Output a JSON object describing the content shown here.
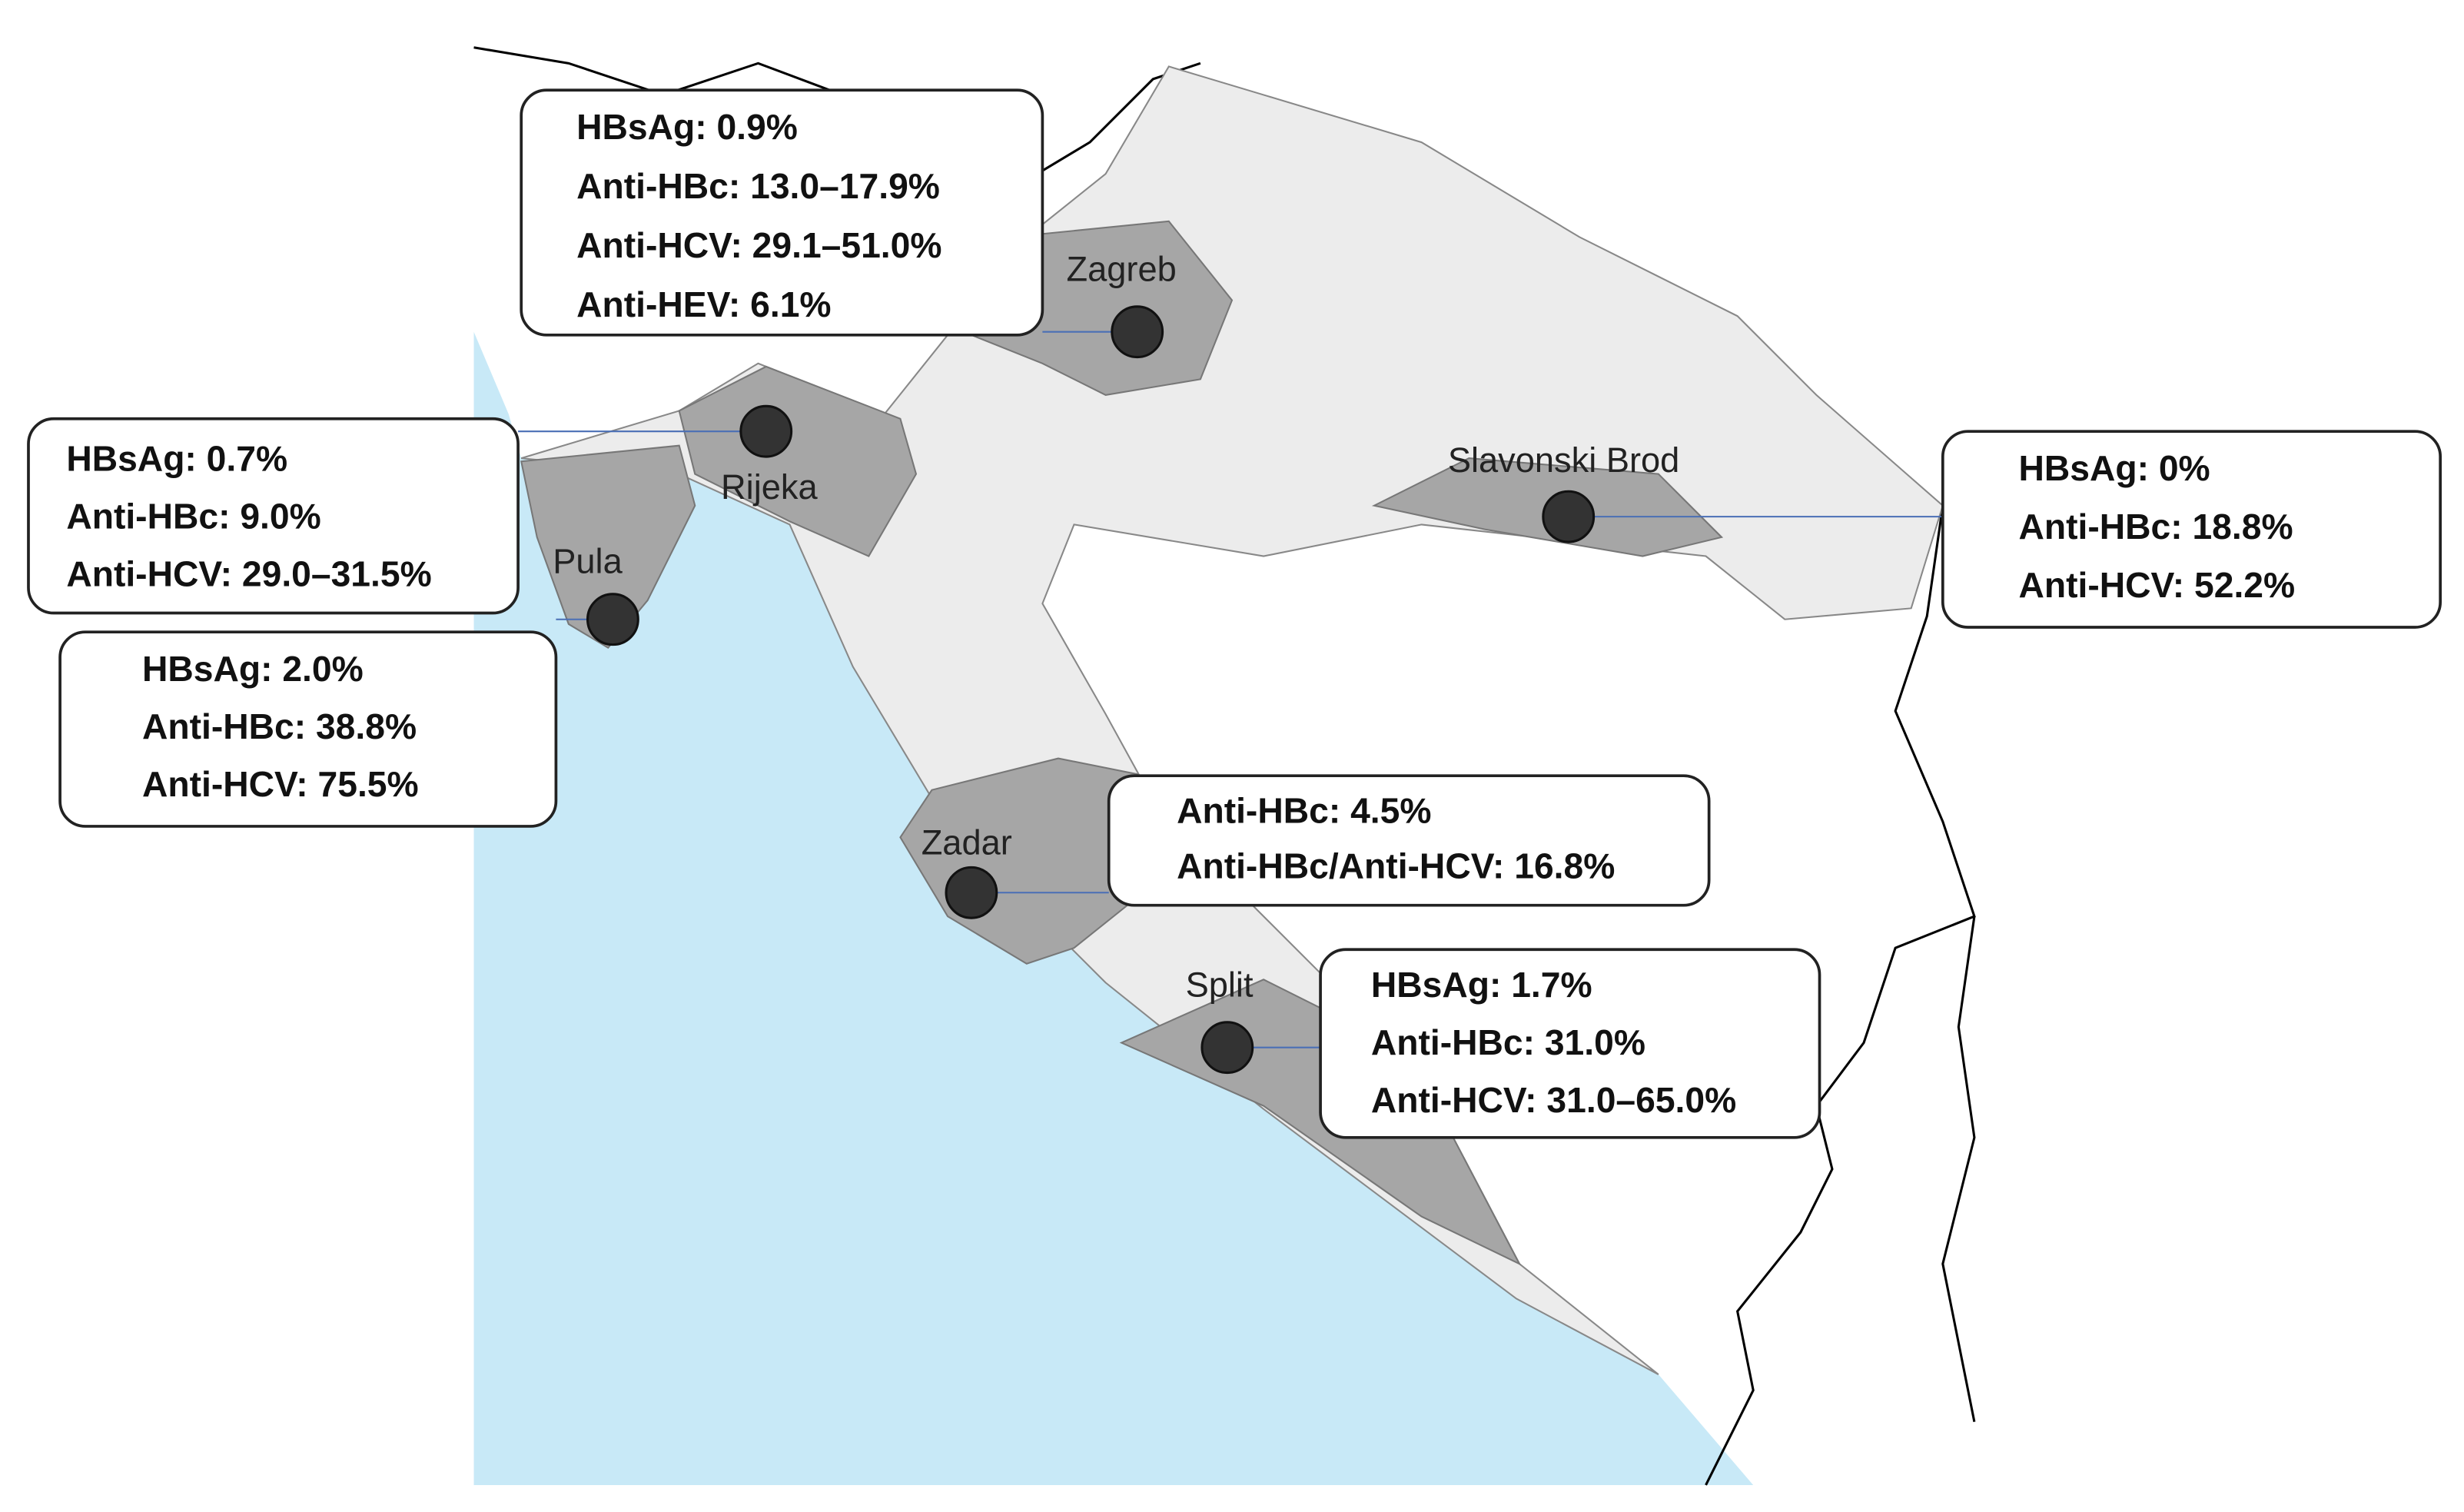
{
  "regions": [
    {
      "city": "Zagreb",
      "lines": [
        "HBsAg:  0.9%",
        "Anti-HBc:  13.0–17.9%",
        "Anti-HCV:  29.1–51.0%",
        "Anti-HEV:  6.1%"
      ]
    },
    {
      "city": "Rijeka",
      "lines": [
        "HBsAg:  0.7%",
        "Anti-HBc:  9.0%",
        "Anti-HCV:  29.0–31.5%"
      ]
    },
    {
      "city": "Pula",
      "lines": [
        "HBsAg:  2.0%",
        "Anti-HBc:  38.8%",
        "Anti-HCV:  75.5%"
      ]
    },
    {
      "city": "Slavonski Brod",
      "lines": [
        "HBsAg:  0%",
        "Anti-HBc:  18.8%",
        "Anti-HCV:  52.2%"
      ]
    },
    {
      "city": "Zadar",
      "lines": [
        "Anti-HBc:  4.5%",
        "Anti-HBc/Anti-HCV:  16.8%"
      ]
    },
    {
      "city": "Split",
      "lines": [
        "HBsAg:  1.7%",
        "Anti-HBc:  31.0%",
        "Anti-HCV:  31.0–65.0%"
      ]
    }
  ]
}
